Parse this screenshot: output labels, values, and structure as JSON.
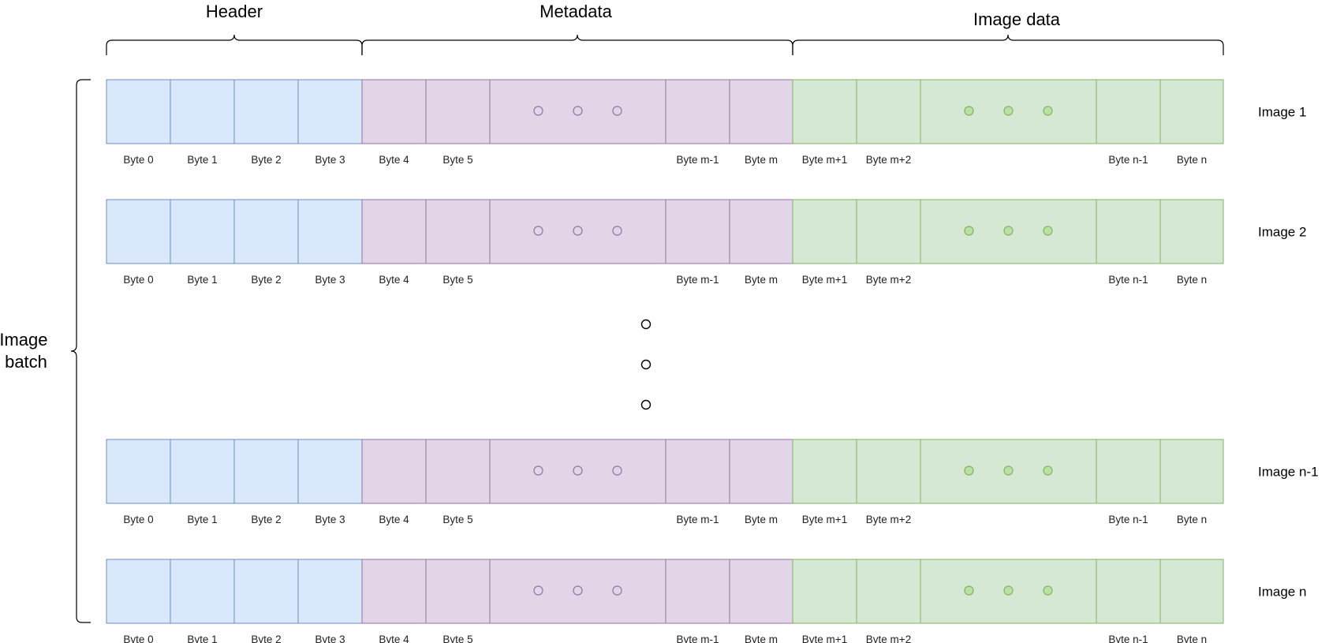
{
  "sections": [
    {
      "label": "Header",
      "fill": "#dae8fc",
      "stroke": "#6c8ebf"
    },
    {
      "label": "Metadata",
      "fill": "#e1d5e7",
      "stroke": "#9673a6"
    },
    {
      "label": "Image data",
      "fill": "#d5e8d4",
      "stroke": "#82b366"
    }
  ],
  "batch_label": [
    "Image",
    "batch"
  ],
  "rows": [
    {
      "label": "Image 1"
    },
    {
      "label": "Image 2"
    },
    {
      "label": "Image n-1"
    },
    {
      "label": "Image n"
    }
  ],
  "byte_labels": [
    "Byte 0",
    "Byte 1",
    "Byte 2",
    "Byte 3",
    "Byte 4",
    "Byte 5",
    "",
    "Byte m-1",
    "Byte m",
    "Byte m+1",
    "Byte m+2",
    "",
    "Byte n-1",
    "Byte n"
  ],
  "ellipsis_symbol": "○"
}
